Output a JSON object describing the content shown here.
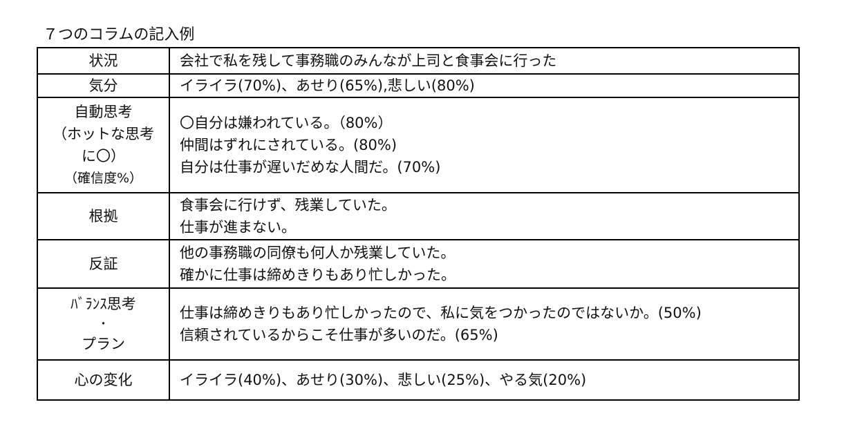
{
  "title": "７つのコラムの記入例",
  "rows": [
    {
      "label_lines": [
        "状況"
      ],
      "content_lines": [
        "会社で私を残して事務職のみんなが上司と食事会に行った"
      ]
    },
    {
      "label_lines": [
        "気分"
      ],
      "content_lines": [
        "イライラ(70%)、あせり(65%),悲しい(80%)"
      ]
    },
    {
      "label_lines": [
        "自動思考",
        "（ホットな思考",
        "に〇）",
        "（確信度%）"
      ],
      "content_lines": [
        "〇自分は嫌われている。（80%）",
        "仲間はずれにされている。(80%)",
        "自分は仕事が遅いだめな人間だ。(70%)"
      ]
    },
    {
      "label_lines": [
        "根拠"
      ],
      "content_lines": [
        "食事会に行けず、残業していた。",
        "仕事が進まない。"
      ]
    },
    {
      "label_lines": [
        "反証"
      ],
      "content_lines": [
        "他の事務職の同僚も何人か残業していた。",
        "確かに仕事は締めきりもあり忙しかった。"
      ]
    },
    {
      "label_lines": [
        "ﾊﾞﾗﾝｽ思考",
        "・",
        "プラン"
      ],
      "content_lines": [
        "仕事は締めきりもあり忙しかったので、私に気をつかったのではないか。(50%)",
        "信頼されているからこそ仕事が多いのだ。(65%)"
      ]
    },
    {
      "label_lines": [
        "心の変化"
      ],
      "content_lines": [
        "イライラ(40%)、あせり(30%)、悲しい(25%)、やる気(20%)"
      ]
    }
  ]
}
